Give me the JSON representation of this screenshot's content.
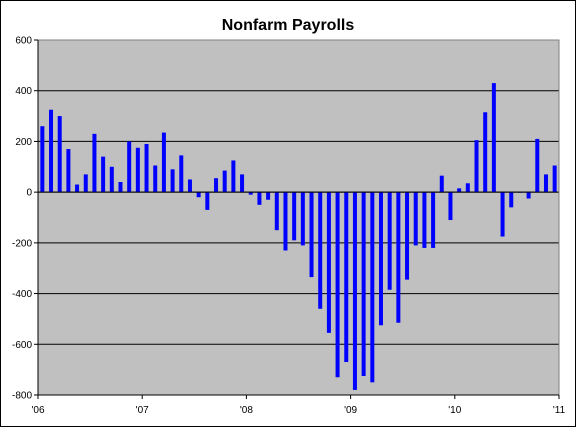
{
  "chart_data": {
    "type": "bar",
    "title": "Nonfarm Payrolls",
    "xlabel": "",
    "ylabel": "",
    "ylim": [
      -800,
      600
    ],
    "yticks": [
      600,
      400,
      200,
      0,
      -200,
      -400,
      -600,
      -800
    ],
    "xticks": [
      "'06",
      "'07",
      "'08",
      "'09",
      "'10",
      "'11"
    ],
    "grid": true,
    "legend": "none",
    "colors": {
      "bar": "#0000ff",
      "plot_background": "#c0c0c0",
      "grid": "#000000"
    },
    "categories": [
      "2006-01",
      "2006-02",
      "2006-03",
      "2006-04",
      "2006-05",
      "2006-06",
      "2006-07",
      "2006-08",
      "2006-09",
      "2006-10",
      "2006-11",
      "2006-12",
      "2007-01",
      "2007-02",
      "2007-03",
      "2007-04",
      "2007-05",
      "2007-06",
      "2007-07",
      "2007-08",
      "2007-09",
      "2007-10",
      "2007-11",
      "2007-12",
      "2008-01",
      "2008-02",
      "2008-03",
      "2008-04",
      "2008-05",
      "2008-06",
      "2008-07",
      "2008-08",
      "2008-09",
      "2008-10",
      "2008-11",
      "2008-12",
      "2009-01",
      "2009-02",
      "2009-03",
      "2009-04",
      "2009-05",
      "2009-06",
      "2009-07",
      "2009-08",
      "2009-09",
      "2009-10",
      "2009-11",
      "2009-12",
      "2010-01",
      "2010-02",
      "2010-03",
      "2010-04",
      "2010-05",
      "2010-06",
      "2010-07",
      "2010-08",
      "2010-09",
      "2010-10",
      "2010-11",
      "2010-12"
    ],
    "values": [
      260,
      325,
      300,
      170,
      30,
      70,
      230,
      140,
      100,
      40,
      200,
      175,
      190,
      105,
      235,
      90,
      145,
      50,
      -20,
      -70,
      55,
      85,
      125,
      70,
      -10,
      -50,
      -30,
      -150,
      -230,
      -190,
      -210,
      -335,
      -460,
      -555,
      -730,
      -670,
      -780,
      -725,
      -750,
      -525,
      -385,
      -515,
      -345,
      -210,
      -220,
      -220,
      65,
      -110,
      15,
      35,
      205,
      315,
      430,
      -175,
      -60,
      0,
      -25,
      210,
      70,
      105
    ]
  }
}
